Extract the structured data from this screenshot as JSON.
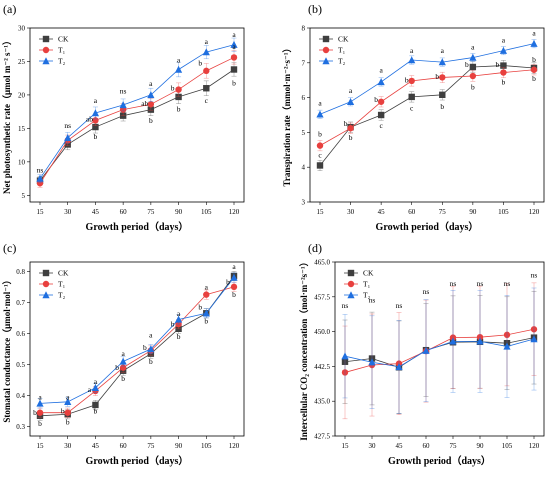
{
  "colors": {
    "CK": "#3f3f3f",
    "T1": "#e8403e",
    "T2": "#1f6fe0"
  },
  "chart_data": [
    {
      "type": "line",
      "panel_label": "(a)",
      "xlabel": "Growth period（days）",
      "ylabel": "Net photosynthetic rate（μmol m⁻² s⁻¹）",
      "x": [
        15,
        30,
        45,
        60,
        75,
        90,
        105,
        120
      ],
      "xticks": [
        "15",
        "30",
        "45",
        "60",
        "75",
        "90",
        "105",
        "120"
      ],
      "ylim": [
        4,
        30
      ],
      "yticks": [
        {
          "v": 5,
          "label": "5"
        },
        {
          "v": 10,
          "label": "10"
        },
        {
          "v": 15,
          "label": "15"
        },
        {
          "v": 20,
          "label": "20"
        },
        {
          "v": 25,
          "label": "25"
        },
        {
          "v": 30,
          "label": "30"
        }
      ],
      "legend": "top-left",
      "series": [
        {
          "name": "CK",
          "marker": "square",
          "values": [
            7.2,
            12.6,
            15.2,
            16.9,
            17.8,
            19.7,
            21.0,
            23.8
          ],
          "err": [
            0.6,
            0.8,
            0.9,
            0.8,
            0.9,
            1.0,
            1.1,
            1.0
          ]
        },
        {
          "name": "T₁",
          "marker": "circle",
          "values": [
            6.8,
            13.2,
            16.2,
            17.8,
            18.6,
            20.8,
            23.6,
            25.6
          ],
          "err": [
            0.6,
            0.8,
            0.8,
            0.9,
            0.9,
            1.0,
            1.1,
            1.0
          ]
        },
        {
          "name": "T₂",
          "marker": "triangle",
          "values": [
            7.5,
            13.6,
            17.3,
            18.5,
            20.0,
            23.8,
            26.4,
            27.5
          ],
          "err": [
            0.6,
            0.8,
            0.9,
            0.9,
            1.0,
            1.1,
            1.0,
            1.0
          ]
        }
      ],
      "annotations": [
        {
          "x": 15,
          "y": 8.8,
          "text": "ns"
        },
        {
          "x": 30,
          "y": 15.4,
          "text": "ns"
        },
        {
          "x": 45,
          "y": 19.2,
          "text": "a"
        },
        {
          "x": 45,
          "y": 16.4,
          "text": "ab",
          "dx": -6
        },
        {
          "x": 45,
          "y": 13.8,
          "text": "b"
        },
        {
          "x": 60,
          "y": 20.6,
          "text": "ns"
        },
        {
          "x": 75,
          "y": 21.7,
          "text": "a"
        },
        {
          "x": 75,
          "y": 18.7,
          "text": "ab",
          "dx": -6
        },
        {
          "x": 75,
          "y": 16.2,
          "text": "b"
        },
        {
          "x": 90,
          "y": 25.2,
          "text": "a"
        },
        {
          "x": 90,
          "y": 21.0,
          "text": "b",
          "dx": -6
        },
        {
          "x": 90,
          "y": 17.9,
          "text": "b"
        },
        {
          "x": 105,
          "y": 28.0,
          "text": "a"
        },
        {
          "x": 105,
          "y": 24.8,
          "text": "b",
          "dx": -6
        },
        {
          "x": 105,
          "y": 19.2,
          "text": "c"
        },
        {
          "x": 120,
          "y": 29.0,
          "text": "a"
        },
        {
          "x": 120,
          "y": 27.2,
          "text": "a"
        },
        {
          "x": 120,
          "y": 21.8,
          "text": "b"
        }
      ]
    },
    {
      "type": "line",
      "panel_label": "(b)",
      "xlabel": "Growth period（days）",
      "ylabel": "Transpiration rate（mmol·m⁻²·s⁻¹）",
      "x": [
        15,
        30,
        45,
        60,
        75,
        90,
        105,
        120
      ],
      "xticks": [
        "15",
        "30",
        "45",
        "60",
        "75",
        "90",
        "105",
        "120"
      ],
      "ylim": [
        3,
        8
      ],
      "yticks": [
        {
          "v": 3,
          "label": "3"
        },
        {
          "v": 4,
          "label": "4"
        },
        {
          "v": 5,
          "label": "5"
        },
        {
          "v": 6,
          "label": "6"
        },
        {
          "v": 7,
          "label": "7"
        },
        {
          "v": 8,
          "label": "8"
        }
      ],
      "legend": "top-left",
      "series": [
        {
          "name": "CK",
          "marker": "square",
          "values": [
            4.05,
            5.15,
            5.5,
            6.02,
            6.08,
            6.88,
            6.92,
            6.85
          ],
          "err": [
            0.15,
            0.15,
            0.15,
            0.15,
            0.15,
            0.15,
            0.15,
            0.15
          ]
        },
        {
          "name": "T₁",
          "marker": "circle",
          "values": [
            4.62,
            5.12,
            5.88,
            6.48,
            6.58,
            6.62,
            6.72,
            6.8
          ],
          "err": [
            0.15,
            0.15,
            0.15,
            0.15,
            0.15,
            0.15,
            0.15,
            0.15
          ]
        },
        {
          "name": "T₂",
          "marker": "triangle",
          "values": [
            5.52,
            5.88,
            6.45,
            7.08,
            7.02,
            7.15,
            7.35,
            7.55
          ],
          "err": [
            0.12,
            0.12,
            0.12,
            0.12,
            0.12,
            0.12,
            0.12,
            0.12
          ]
        }
      ],
      "annotations": [
        {
          "x": 15,
          "y": 5.85,
          "text": "a"
        },
        {
          "x": 15,
          "y": 4.95,
          "text": "b"
        },
        {
          "x": 15,
          "y": 4.35,
          "text": "c"
        },
        {
          "x": 30,
          "y": 6.2,
          "text": "a"
        },
        {
          "x": 30,
          "y": 5.25,
          "text": "b",
          "dx": -5
        },
        {
          "x": 30,
          "y": 4.85,
          "text": "b"
        },
        {
          "x": 45,
          "y": 6.8,
          "text": "a"
        },
        {
          "x": 45,
          "y": 5.95,
          "text": "b",
          "dx": -5
        },
        {
          "x": 45,
          "y": 5.2,
          "text": "c"
        },
        {
          "x": 60,
          "y": 7.35,
          "text": "a"
        },
        {
          "x": 60,
          "y": 6.5,
          "text": "b",
          "dx": -5
        },
        {
          "x": 60,
          "y": 5.7,
          "text": "c"
        },
        {
          "x": 75,
          "y": 7.35,
          "text": "a"
        },
        {
          "x": 75,
          "y": 6.6,
          "text": "b",
          "dx": -5
        },
        {
          "x": 75,
          "y": 5.75,
          "text": "b"
        },
        {
          "x": 90,
          "y": 7.45,
          "text": "a"
        },
        {
          "x": 90,
          "y": 6.95,
          "text": "b",
          "dx": -6
        },
        {
          "x": 90,
          "y": 6.3,
          "text": "b"
        },
        {
          "x": 105,
          "y": 7.65,
          "text": "a"
        },
        {
          "x": 105,
          "y": 6.95,
          "text": "b",
          "dx": -6
        },
        {
          "x": 105,
          "y": 6.45,
          "text": "b"
        },
        {
          "x": 120,
          "y": 7.85,
          "text": "a"
        },
        {
          "x": 120,
          "y": 7.1,
          "text": "b"
        },
        {
          "x": 120,
          "y": 6.55,
          "text": "b"
        }
      ]
    },
    {
      "type": "line",
      "panel_label": "(c)",
      "xlabel": "Growth period（days）",
      "ylabel": "Stomatal conductance（μmol·mol⁻¹）",
      "x": [
        15,
        30,
        45,
        60,
        75,
        90,
        105,
        120
      ],
      "xticks": [
        "15",
        "30",
        "45",
        "60",
        "75",
        "90",
        "105",
        "120"
      ],
      "ylim": [
        0.27,
        0.83
      ],
      "yticks": [
        {
          "v": 0.3,
          "label": "0.3"
        },
        {
          "v": 0.4,
          "label": "0.4"
        },
        {
          "v": 0.5,
          "label": "0.5"
        },
        {
          "v": 0.6,
          "label": "0.6"
        },
        {
          "v": 0.7,
          "label": "0.7"
        },
        {
          "v": 0.8,
          "label": "0.8"
        }
      ],
      "legend": "top-left",
      "series": [
        {
          "name": "CK",
          "marker": "square",
          "values": [
            0.335,
            0.34,
            0.37,
            0.48,
            0.535,
            0.615,
            0.665,
            0.785
          ],
          "err": [
            0.015,
            0.015,
            0.015,
            0.015,
            0.015,
            0.015,
            0.015,
            0.015
          ]
        },
        {
          "name": "T₁",
          "marker": "circle",
          "values": [
            0.345,
            0.345,
            0.415,
            0.49,
            0.545,
            0.63,
            0.725,
            0.75
          ],
          "err": [
            0.015,
            0.015,
            0.015,
            0.015,
            0.015,
            0.015,
            0.015,
            0.015
          ]
        },
        {
          "name": "T₂",
          "marker": "triangle",
          "values": [
            0.375,
            0.38,
            0.425,
            0.51,
            0.55,
            0.645,
            0.665,
            0.78
          ],
          "err": [
            0.015,
            0.015,
            0.015,
            0.015,
            0.015,
            0.015,
            0.015,
            0.015
          ]
        }
      ],
      "annotations": [
        {
          "x": 15,
          "y": 0.395,
          "text": "a"
        },
        {
          "x": 15,
          "y": 0.345,
          "text": "b",
          "dx": -5
        },
        {
          "x": 15,
          "y": 0.31,
          "text": "b"
        },
        {
          "x": 30,
          "y": 0.395,
          "text": "a"
        },
        {
          "x": 30,
          "y": 0.35,
          "text": "b",
          "dx": -5
        },
        {
          "x": 30,
          "y": 0.315,
          "text": "b"
        },
        {
          "x": 45,
          "y": 0.445,
          "text": "a"
        },
        {
          "x": 45,
          "y": 0.42,
          "text": "a",
          "dx": -6
        },
        {
          "x": 45,
          "y": 0.35,
          "text": "b"
        },
        {
          "x": 60,
          "y": 0.535,
          "text": "a"
        },
        {
          "x": 60,
          "y": 0.49,
          "text": "b",
          "dx": -6
        },
        {
          "x": 60,
          "y": 0.455,
          "text": "b"
        },
        {
          "x": 75,
          "y": 0.595,
          "text": "a"
        },
        {
          "x": 75,
          "y": 0.555,
          "text": "b",
          "dx": -6
        },
        {
          "x": 75,
          "y": 0.51,
          "text": "b"
        },
        {
          "x": 90,
          "y": 0.665,
          "text": "a"
        },
        {
          "x": 90,
          "y": 0.63,
          "text": "b",
          "dx": -6
        },
        {
          "x": 90,
          "y": 0.59,
          "text": "b"
        },
        {
          "x": 105,
          "y": 0.75,
          "text": "a"
        },
        {
          "x": 105,
          "y": 0.685,
          "text": "b",
          "dx": -6
        },
        {
          "x": 105,
          "y": 0.64,
          "text": "b"
        },
        {
          "x": 120,
          "y": 0.815,
          "text": "a"
        },
        {
          "x": 120,
          "y": 0.765,
          "text": "b",
          "dx": -6
        },
        {
          "x": 120,
          "y": 0.725,
          "text": "b"
        }
      ]
    },
    {
      "type": "line",
      "panel_label": "(d)",
      "xlabel": "Growth period（days）",
      "ylabel": "Intercellular CO₂ concentration（mol·m⁻²s⁻¹）",
      "x": [
        15,
        30,
        45,
        60,
        75,
        90,
        105,
        120
      ],
      "xticks": [
        "15",
        "30",
        "45",
        "60",
        "75",
        "90",
        "105",
        "120"
      ],
      "ylim": [
        427.5,
        465.0
      ],
      "yticks": [
        {
          "v": 427.5,
          "label": "427.5"
        },
        {
          "v": 435.0,
          "label": "435.0"
        },
        {
          "v": 442.5,
          "label": "442.5"
        },
        {
          "v": 450.0,
          "label": "450.0"
        },
        {
          "v": 457.5,
          "label": "457.5"
        },
        {
          "v": 465.0,
          "label": "465.0"
        }
      ],
      "legend": "top-left",
      "series": [
        {
          "name": "CK",
          "marker": "square",
          "values": [
            443.5,
            444.2,
            442.3,
            446.0,
            447.7,
            447.8,
            447.5,
            448.7
          ],
          "err": [
            9,
            10,
            10,
            10,
            10,
            10,
            10,
            10
          ]
        },
        {
          "name": "T₁",
          "marker": "circle",
          "values": [
            441.2,
            442.8,
            443.1,
            445.8,
            448.7,
            448.8,
            449.3,
            450.5
          ],
          "err": [
            10,
            11,
            11,
            11,
            11,
            11,
            11,
            10
          ]
        },
        {
          "name": "T₂",
          "marker": "triangle",
          "values": [
            444.7,
            443.4,
            442.4,
            445.9,
            447.9,
            447.9,
            446.8,
            448.4
          ],
          "err": [
            9,
            10,
            10,
            11,
            11,
            11,
            11,
            11
          ]
        }
      ],
      "annotations": [
        {
          "x": 15,
          "y": 455.6,
          "text": "ns"
        },
        {
          "x": 30,
          "y": 456.8,
          "text": "ns"
        },
        {
          "x": 45,
          "y": 455.6,
          "text": "ns"
        },
        {
          "x": 60,
          "y": 458.6,
          "text": "ns"
        },
        {
          "x": 75,
          "y": 460.4,
          "text": "ns"
        },
        {
          "x": 90,
          "y": 460.4,
          "text": "ns"
        },
        {
          "x": 105,
          "y": 460.4,
          "text": "ns"
        },
        {
          "x": 120,
          "y": 462.2,
          "text": "ns"
        }
      ]
    }
  ]
}
